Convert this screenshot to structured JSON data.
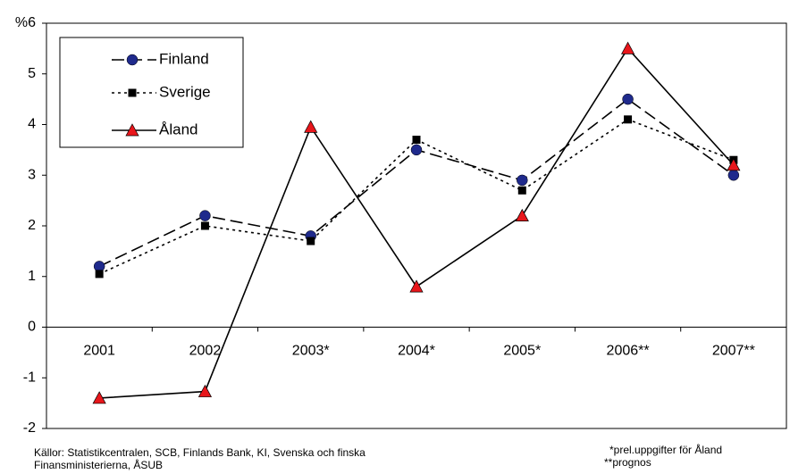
{
  "chart_data": {
    "type": "line",
    "categories": [
      "2001",
      "2002",
      "2003*",
      "2004*",
      "2005*",
      "2006**",
      "2007**"
    ],
    "ylim": [
      -2,
      6
    ],
    "yticks": [
      -2,
      -1,
      0,
      1,
      2,
      3,
      4,
      5,
      {
        "value": 6,
        "label": "%6"
      }
    ],
    "series": [
      {
        "name": "Finland",
        "color": "#1f2a8c",
        "marker": "circle",
        "dash": "dashed",
        "values": [
          1.2,
          2.2,
          1.8,
          3.5,
          2.9,
          4.5,
          3.0
        ]
      },
      {
        "name": "Sverige",
        "color": "#000000",
        "marker": "square",
        "dash": "dotted",
        "values": [
          1.05,
          2.0,
          1.7,
          3.7,
          2.7,
          4.1,
          3.3
        ]
      },
      {
        "name": "Åland",
        "color": "#e8161b",
        "marker": "triangle",
        "dash": "solid",
        "values": [
          -1.4,
          -1.27,
          3.95,
          0.8,
          2.2,
          5.5,
          3.2
        ]
      }
    ],
    "notes": {
      "source": [
        "Källor: Statistikcentralen, SCB, Finlands Bank, KI,  Svenska och finska",
        "Finansministerierna,  ÅSUB"
      ],
      "footnotes": [
        "*prel.uppgifter för Åland",
        "**prognos"
      ]
    }
  }
}
